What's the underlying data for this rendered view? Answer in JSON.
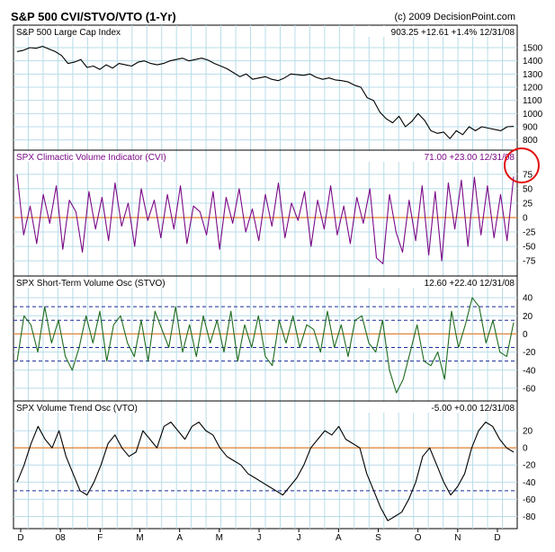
{
  "header": {
    "title": "S&P 500 CVI/STVO/VTO (1-Yr)",
    "copyright": "(c) 2009 DecisionPoint.com"
  },
  "x_axis": {
    "tick_labels": [
      "D",
      "08",
      "F",
      "M",
      "A",
      "M",
      "J",
      "J",
      "A",
      "S",
      "O",
      "N",
      "D"
    ]
  },
  "colors": {
    "price": "#000000",
    "cvi": "#7a0a86",
    "stvo": "#1d6b1d",
    "vto": "#000000",
    "zero_line": "#e08030",
    "band_line": "#1a2a9a",
    "grid": "#b8dce8",
    "highlight_circle": "#e01010"
  },
  "chart_data": [
    {
      "type": "line",
      "title": "S&P 500 Large Cap Index",
      "readout": {
        "value": "903.25",
        "change": "+12.61",
        "pct": "+1.4%",
        "date": "12/31/08"
      },
      "ylim": [
        750,
        1575
      ],
      "yticks": [
        800,
        900,
        1000,
        1100,
        1200,
        1300,
        1400,
        1500
      ],
      "series": [
        {
          "values": [
            1470,
            1480,
            1500,
            1495,
            1510,
            1490,
            1470,
            1440,
            1380,
            1390,
            1410,
            1350,
            1360,
            1335,
            1370,
            1345,
            1380,
            1370,
            1360,
            1390,
            1400,
            1380,
            1370,
            1380,
            1400,
            1410,
            1420,
            1400,
            1410,
            1420,
            1405,
            1380,
            1360,
            1340,
            1310,
            1280,
            1300,
            1260,
            1270,
            1280,
            1260,
            1250,
            1270,
            1300,
            1295,
            1290,
            1300,
            1275,
            1260,
            1270,
            1255,
            1250,
            1240,
            1215,
            1200,
            1120,
            1100,
            1010,
            960,
            930,
            980,
            900,
            940,
            1000,
            950,
            870,
            850,
            860,
            810,
            870,
            840,
            900,
            870,
            900,
            890,
            880,
            870,
            900,
            903
          ]
        }
      ]
    },
    {
      "type": "line",
      "title": "SPX Climactic Volume Indicator (CVI)",
      "readout": {
        "value": "71.00",
        "change": "+23.00",
        "date": "12/31/08"
      },
      "ylim": [
        -95,
        95
      ],
      "yticks": [
        -75,
        -50,
        -25,
        0,
        25,
        50,
        75
      ],
      "series": [
        {
          "values": [
            75,
            -30,
            20,
            -45,
            40,
            -10,
            55,
            -55,
            30,
            10,
            -60,
            45,
            -20,
            35,
            -40,
            60,
            -15,
            25,
            -50,
            50,
            -5,
            30,
            -35,
            40,
            -20,
            55,
            -45,
            20,
            10,
            -30,
            45,
            -55,
            35,
            -10,
            50,
            -25,
            15,
            -40,
            40,
            -15,
            60,
            -35,
            25,
            -5,
            45,
            -50,
            30,
            -20,
            55,
            -30,
            20,
            -45,
            35,
            -10,
            50,
            -70,
            -80,
            40,
            -25,
            -60,
            30,
            -40,
            55,
            -65,
            45,
            -75,
            60,
            -20,
            65,
            -50,
            70,
            -30,
            55,
            -35,
            40,
            -40,
            71
          ]
        }
      ]
    },
    {
      "type": "line",
      "title": "SPX Short-Term Volume Osc (STVO)",
      "readout": {
        "value": "12.60",
        "change": "+22.40",
        "date": "12/31/08"
      },
      "ylim": [
        -70,
        50
      ],
      "yticks": [
        -60,
        -40,
        -20,
        0,
        20,
        40
      ],
      "bands": [
        -30,
        -15,
        15,
        30
      ],
      "series": [
        {
          "values": [
            -30,
            20,
            10,
            -20,
            30,
            -10,
            15,
            -25,
            -40,
            -15,
            20,
            -10,
            25,
            -30,
            10,
            20,
            -10,
            -25,
            15,
            -30,
            25,
            5,
            -15,
            30,
            -20,
            10,
            -25,
            20,
            -10,
            15,
            -20,
            25,
            -30,
            10,
            -15,
            20,
            -25,
            -35,
            15,
            -10,
            20,
            -15,
            10,
            5,
            -20,
            25,
            -15,
            10,
            -25,
            15,
            20,
            -10,
            -20,
            15,
            -40,
            -65,
            -50,
            -20,
            10,
            -30,
            -35,
            -20,
            -50,
            25,
            -15,
            10,
            40,
            30,
            -10,
            15,
            -20,
            -25,
            12.6
          ]
        }
      ]
    },
    {
      "type": "line",
      "title": "SPX Volume Trend Osc (VTO)",
      "readout": {
        "value": "-5.00",
        "change": "+0.00",
        "date": "12/31/08"
      },
      "ylim": [
        -90,
        40
      ],
      "yticks": [
        -80,
        -60,
        -40,
        -20,
        0,
        20
      ],
      "bands": [
        -50
      ],
      "series": [
        {
          "values": [
            -40,
            -20,
            5,
            25,
            10,
            0,
            20,
            -10,
            -30,
            -50,
            -55,
            -40,
            -20,
            5,
            15,
            0,
            -10,
            -5,
            20,
            10,
            0,
            25,
            30,
            20,
            10,
            25,
            30,
            20,
            15,
            0,
            -10,
            -15,
            -20,
            -30,
            -35,
            -40,
            -45,
            -50,
            -55,
            -45,
            -35,
            -20,
            0,
            10,
            20,
            15,
            25,
            10,
            5,
            0,
            -30,
            -50,
            -70,
            -85,
            -80,
            -75,
            -60,
            -40,
            -10,
            0,
            -20,
            -40,
            -55,
            -45,
            -30,
            0,
            20,
            30,
            25,
            10,
            0,
            -5
          ]
        }
      ]
    }
  ]
}
